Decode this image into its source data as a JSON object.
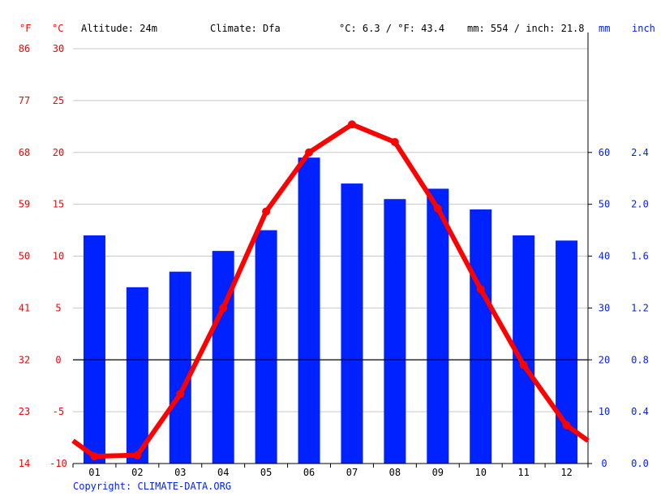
{
  "header": {
    "unit_f": "°F",
    "unit_c": "°C",
    "altitude": "Altitude: 24m",
    "climate": "Climate: Dfa",
    "avg_temp": "°C: 6.3 / °F: 43.4",
    "precip": "mm: 554 / inch: 21.8",
    "unit_mm": "mm",
    "unit_inch": "inch"
  },
  "copyright": "Copyright: CLIMATE-DATA.ORG",
  "colors": {
    "temperature": "#ff0000",
    "precipitation": "#0022ff",
    "grid": "#c8c8c8"
  },
  "chart_data": {
    "type": "bar+line",
    "categories": [
      "01",
      "02",
      "03",
      "04",
      "05",
      "06",
      "07",
      "08",
      "09",
      "10",
      "11",
      "12"
    ],
    "series": [
      {
        "type": "bar",
        "axis": "right",
        "unit": "mm",
        "values": [
          44,
          34,
          37,
          41,
          45,
          59,
          54,
          51,
          53,
          49,
          44,
          43
        ]
      },
      {
        "type": "line",
        "axis": "left",
        "unit": "°C",
        "values": [
          -9.3,
          -9.2,
          -3.3,
          5.0,
          14.3,
          20.0,
          22.7,
          21.0,
          14.6,
          6.8,
          -0.5,
          -6.3
        ]
      }
    ],
    "left_axis_c": {
      "ticks": [
        -10,
        -5,
        0,
        5,
        10,
        15,
        20,
        25,
        30
      ],
      "range": [
        -10,
        30
      ]
    },
    "left_axis_f": {
      "ticks": [
        "14",
        "23",
        "32",
        "41",
        "50",
        "59",
        "68",
        "77",
        "86"
      ]
    },
    "right_axis_mm": {
      "ticks": [
        0,
        10,
        20,
        30,
        40,
        50,
        60
      ],
      "range": [
        0,
        80
      ]
    },
    "right_axis_inch": {
      "ticks": [
        "0.0",
        "0.4",
        "0.8",
        "1.2",
        "1.6",
        "2.0",
        "2.4"
      ]
    },
    "grid": true
  }
}
